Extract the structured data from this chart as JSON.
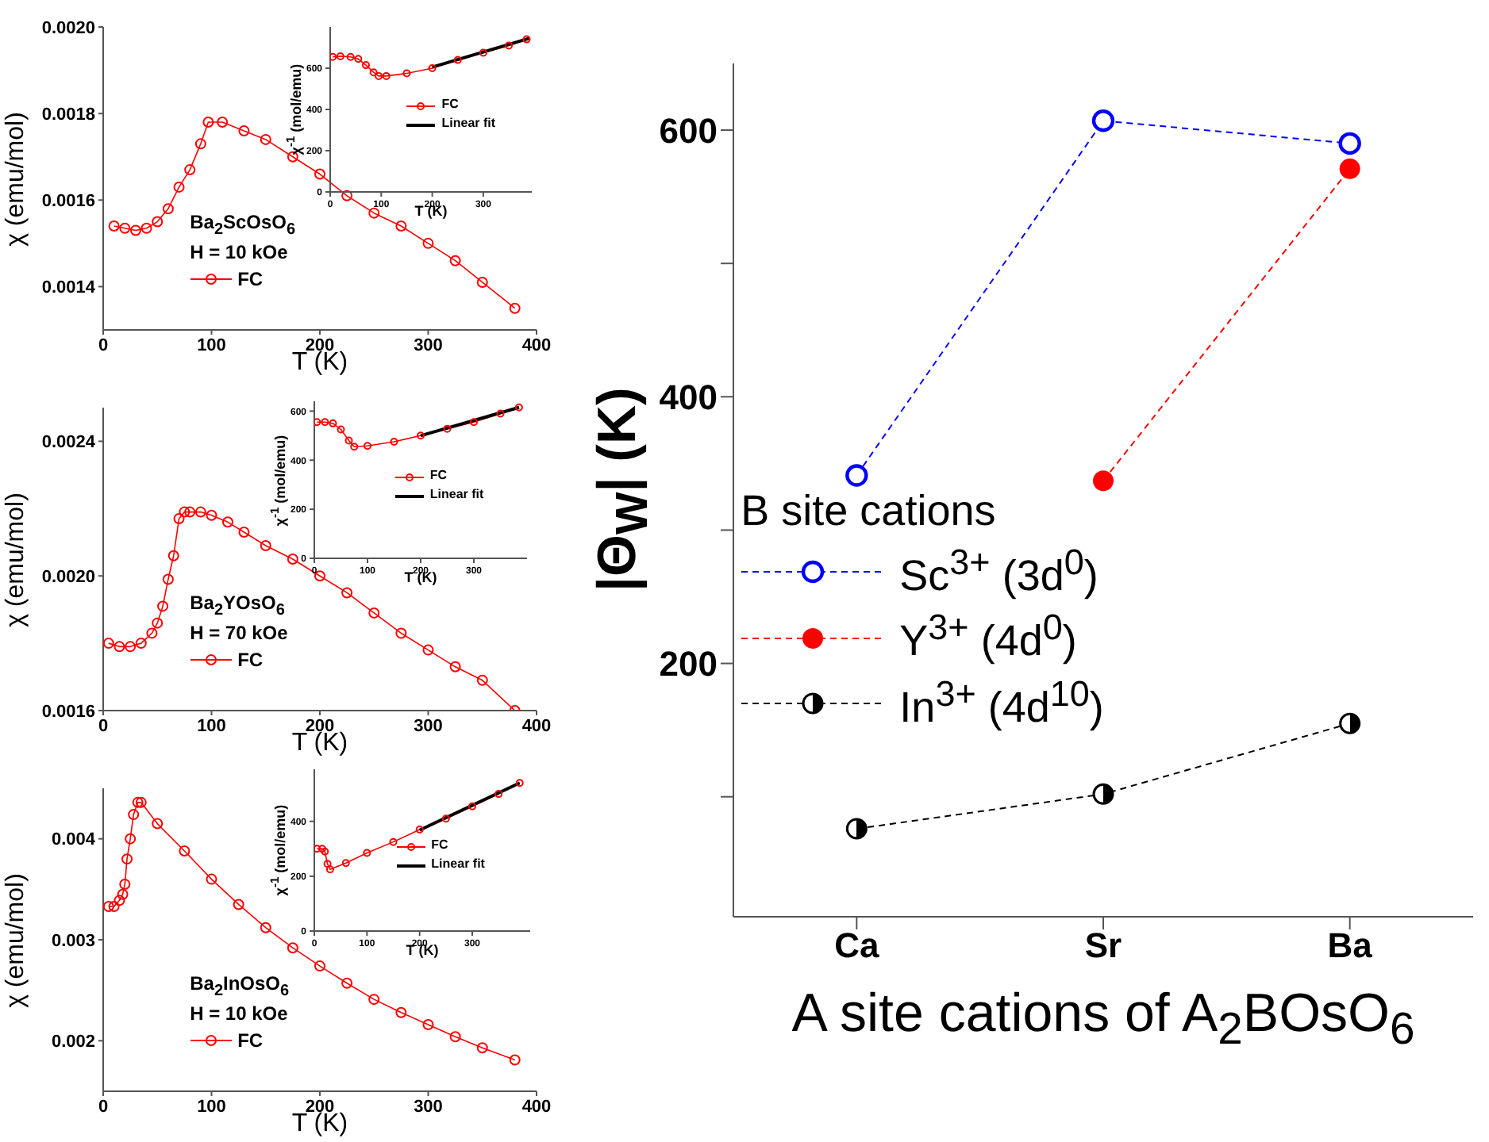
{
  "chart_data": [
    {
      "type": "line",
      "xlabel": "T (K)",
      "ylabel": "χ (emu/mol)",
      "xlim": [
        0,
        400
      ],
      "xticks": [
        0,
        100,
        200,
        300,
        400
      ],
      "ylim": [
        0.0013,
        0.002
      ],
      "yticks": [
        {
          "value": 0.002,
          "label": "0.0020"
        },
        0.0018,
        0.0016,
        0.0014
      ],
      "marker": "circle",
      "legend": "bottom left",
      "annotations": [
        "Ba$_{2}$ScOsO$_{6}$",
        "H = 10 kOe"
      ],
      "series": [
        {
          "name": "FC",
          "color": "#ff0000",
          "x": [
            10,
            20,
            30,
            40,
            50,
            60,
            70,
            80,
            90,
            97,
            110,
            130,
            150,
            175,
            200,
            225,
            250,
            275,
            300,
            325,
            350,
            380
          ],
          "values": [
            0.00154,
            0.001535,
            0.00153,
            0.001535,
            0.00155,
            0.00158,
            0.00163,
            0.00167,
            0.00173,
            0.00178,
            0.00178,
            0.00176,
            0.00174,
            0.0017,
            0.00166,
            0.00161,
            0.00157,
            0.00154,
            0.0015,
            0.00146,
            0.00141,
            0.00135
          ]
        }
      ]
    },
    {
      "type": "line",
      "xlabel": "T (K)",
      "ylabel": "χ$^{-1}$ (mol/emu)",
      "xlim": [
        0,
        395
      ],
      "xticks": [
        0,
        100,
        200,
        300
      ],
      "ylim": [
        0,
        800
      ],
      "yticks": [
        0,
        200,
        400,
        600
      ],
      "legend": "center",
      "series": [
        {
          "name": "FC",
          "color": "#ff0000",
          "marker": "circle",
          "x": [
            5,
            20,
            40,
            55,
            70,
            85,
            95,
            110,
            150,
            200,
            250,
            300,
            350,
            385
          ],
          "values": [
            655,
            658,
            655,
            645,
            615,
            580,
            562,
            562,
            575,
            600,
            640,
            675,
            710,
            740
          ]
        },
        {
          "name": "Linear fit",
          "color": "#000000",
          "marker": "none",
          "x": [
            200,
            390
          ],
          "values": [
            605,
            745
          ]
        }
      ]
    },
    {
      "type": "line",
      "xlabel": "T (K)",
      "ylabel": "χ (emu/mol)",
      "xlim": [
        0,
        400
      ],
      "xticks": [
        0,
        100,
        200,
        300,
        400
      ],
      "ylim": [
        0.0016,
        0.0025
      ],
      "yticks": [
        0.0024,
        {
          "value": 0.002,
          "label": "0.0020"
        },
        0.0016
      ],
      "marker": "circle",
      "legend": "bottom left",
      "annotations": [
        "Ba$_{2}$YOsO$_{6}$",
        "H = 70 kOe"
      ],
      "series": [
        {
          "name": "FC",
          "color": "#ff0000",
          "x": [
            5,
            15,
            25,
            35,
            45,
            50,
            55,
            60,
            65,
            70,
            75,
            80,
            90,
            100,
            115,
            130,
            150,
            175,
            200,
            225,
            250,
            275,
            300,
            325,
            350,
            380
          ],
          "values": [
            0.0018,
            0.00179,
            0.00179,
            0.0018,
            0.00183,
            0.00186,
            0.00191,
            0.00199,
            0.00206,
            0.00217,
            0.00219,
            0.00219,
            0.00219,
            0.00218,
            0.00216,
            0.00213,
            0.00209,
            0.00205,
            0.002,
            0.00195,
            0.00189,
            0.00183,
            0.00178,
            0.00173,
            0.00169,
            0.0016
          ]
        }
      ]
    },
    {
      "type": "line",
      "xlabel": "T (K)",
      "ylabel": "χ$^{-1}$ (mol/emu)",
      "xlim": [
        0,
        400
      ],
      "xticks": [
        0,
        100,
        200,
        300
      ],
      "ylim": [
        0,
        640
      ],
      "yticks": [
        0,
        200,
        400,
        600
      ],
      "legend": "center",
      "series": [
        {
          "name": "FC",
          "color": "#ff0000",
          "marker": "circle",
          "x": [
            5,
            20,
            35,
            50,
            65,
            75,
            100,
            150,
            200,
            250,
            300,
            350,
            385
          ],
          "values": [
            555,
            555,
            550,
            525,
            480,
            455,
            458,
            475,
            500,
            528,
            555,
            590,
            615
          ]
        },
        {
          "name": "Linear fit",
          "color": "#000000",
          "marker": "none",
          "x": [
            200,
            385
          ],
          "values": [
            500,
            615
          ]
        }
      ]
    },
    {
      "type": "line",
      "xlabel": "T (K)",
      "ylabel": "χ (emu/mol)",
      "xlim": [
        0,
        400
      ],
      "xticks": [
        0,
        100,
        200,
        300,
        400
      ],
      "ylim": [
        0.0015,
        0.0045
      ],
      "yticks": [
        0.004,
        0.003,
        0.002
      ],
      "marker": "circle",
      "legend": "bottom left",
      "annotations": [
        "Ba$_{2}$InOsO$_{6}$",
        "H = 10 kOe"
      ],
      "series": [
        {
          "name": "FC",
          "color": "#ff0000",
          "x": [
            5,
            10,
            15,
            18,
            20,
            22,
            25,
            28,
            32,
            35,
            50,
            75,
            100,
            125,
            150,
            175,
            200,
            225,
            250,
            275,
            300,
            325,
            350,
            380
          ],
          "values": [
            0.00333,
            0.00333,
            0.00339,
            0.00345,
            0.00355,
            0.0038,
            0.004,
            0.00424,
            0.00436,
            0.00436,
            0.00415,
            0.00388,
            0.0036,
            0.00335,
            0.00312,
            0.00292,
            0.00274,
            0.00257,
            0.00241,
            0.00228,
            0.00216,
            0.00204,
            0.00193,
            0.00181
          ]
        }
      ]
    },
    {
      "type": "line",
      "xlabel": "T (K)",
      "ylabel": "χ$^{-1}$ (mol/emu)",
      "xlim": [
        0,
        410
      ],
      "xticks": [
        0,
        100,
        200,
        300
      ],
      "ylim": [
        0,
        590
      ],
      "yticks": [
        0,
        200,
        400
      ],
      "legend": "center",
      "series": [
        {
          "name": "FC",
          "color": "#ff0000",
          "marker": "circle",
          "x": [
            5,
            15,
            20,
            25,
            30,
            60,
            100,
            150,
            200,
            250,
            300,
            350,
            390
          ],
          "values": [
            300,
            300,
            290,
            245,
            225,
            248,
            285,
            325,
            370,
            410,
            455,
            500,
            540
          ]
        },
        {
          "name": "Linear fit",
          "color": "#000000",
          "marker": "none",
          "x": [
            200,
            390
          ],
          "values": [
            368,
            540
          ]
        }
      ]
    },
    {
      "type": "line",
      "xlabel": "A site cations of A$_{2}$BOsO$_{6}$",
      "ylabel": "|Θ$_{W}$| (K)",
      "legend_title": "B site cations",
      "categories": [
        "Ca",
        "Sr",
        "Ba"
      ],
      "ylim": [
        10,
        650
      ],
      "yticks": [
        {
          "value": 100,
          "label": null
        },
        200,
        {
          "value": 300,
          "label": null
        },
        400,
        {
          "value": 500,
          "label": null
        },
        600
      ],
      "marker": "circle",
      "line_style": "dashed",
      "legend": "left",
      "series": [
        {
          "name": "Sc$^{3+}$ (3d$^{0}$)",
          "color": "#0000ff",
          "values": [
            341,
            607,
            590
          ]
        },
        {
          "name": "Y$^{3+}$ (4d$^{0}$)",
          "color": "#ff0000",
          "values": [
            null,
            337,
            571
          ]
        },
        {
          "name": "In$^{3+}$ (4d$^{10}$)",
          "color": "#000000",
          "values": [
            76,
            102,
            155
          ]
        }
      ]
    }
  ]
}
